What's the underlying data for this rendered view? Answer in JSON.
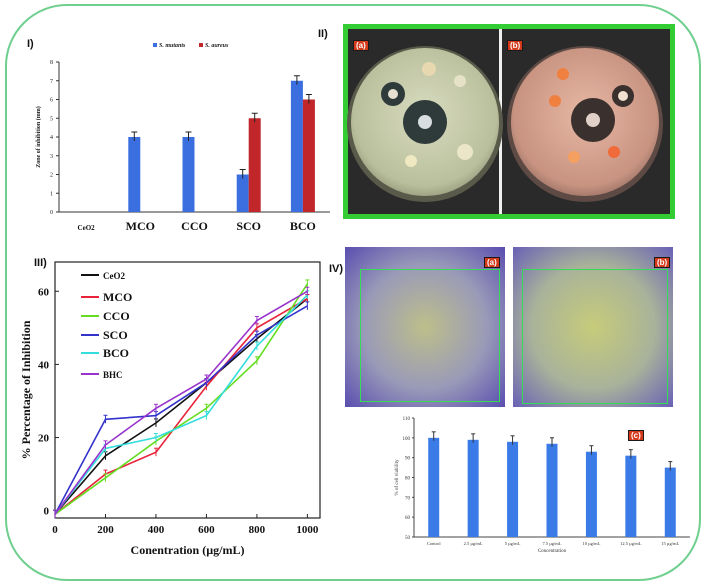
{
  "panels": {
    "p1": {
      "label": "I)"
    },
    "p2": {
      "label": "II)"
    },
    "p3": {
      "label": "III)"
    },
    "p4": {
      "label": "IV)"
    }
  },
  "photo_tags": {
    "a": "(a)",
    "b": "(b)",
    "c": "(c)"
  },
  "chart_data": [
    {
      "id": "zone",
      "type": "bar",
      "ylabel": "Zone of inhibition (mm)",
      "ylim": [
        0,
        8
      ],
      "yticks": [
        "0",
        "1",
        "2",
        "3",
        "4",
        "5",
        "6",
        "7",
        "8"
      ],
      "categories": [
        "CeO2",
        "MCO",
        "CCO",
        "SCO",
        "BCO"
      ],
      "series": [
        {
          "name": "S. mutants",
          "color": "#3b6fe0",
          "values": [
            0,
            4,
            4,
            2,
            7
          ]
        },
        {
          "name": "S. aureus",
          "color": "#c0262a",
          "values": [
            0,
            0,
            0,
            5,
            6
          ]
        }
      ]
    },
    {
      "id": "dpph",
      "type": "line",
      "xlabel": "Conentration (µg/mL)",
      "ylabel": "% Percentage of Inhibition",
      "xlim": [
        0,
        1050
      ],
      "ylim": [
        -2,
        68
      ],
      "xticks": [
        "0",
        "200",
        "400",
        "600",
        "800",
        "1000"
      ],
      "yticks": [
        "0",
        "20",
        "40",
        "60"
      ],
      "x": [
        0,
        200,
        400,
        600,
        800,
        1000
      ],
      "series": [
        {
          "name": "CeO2",
          "color": "#111111",
          "values": [
            -1,
            15,
            24,
            35,
            47,
            58
          ]
        },
        {
          "name": "MCO",
          "color": "#e8233a",
          "values": [
            -1,
            10,
            16,
            34,
            50,
            58
          ]
        },
        {
          "name": "CCO",
          "color": "#66dd22",
          "values": [
            -1,
            9,
            19,
            28,
            41,
            62
          ]
        },
        {
          "name": "SCO",
          "color": "#3333cc",
          "values": [
            -1,
            25,
            26,
            35,
            48,
            56
          ]
        },
        {
          "name": "BCO",
          "color": "#33dddd",
          "values": [
            -1,
            17,
            20,
            26,
            45,
            59
          ]
        },
        {
          "name": "BHC",
          "color": "#9933cc",
          "values": [
            -1,
            18,
            28,
            36,
            52,
            60
          ]
        }
      ]
    },
    {
      "id": "viability",
      "type": "bar",
      "ylabel": "% of cell viability",
      "xlabel": "Concentration",
      "ylim": [
        50,
        110
      ],
      "yticks": [
        "50",
        "60",
        "70",
        "80",
        "90",
        "100",
        "110"
      ],
      "categories": [
        "Control",
        "2.5 µg/mL",
        "5 µg/mL",
        "7.5 µg/mL",
        "10 µg/mL",
        "12.5 µg/mL",
        "15 µg/mL"
      ],
      "values": [
        100,
        99,
        98,
        97,
        93,
        91,
        85
      ],
      "color": "#3a7be8"
    }
  ]
}
